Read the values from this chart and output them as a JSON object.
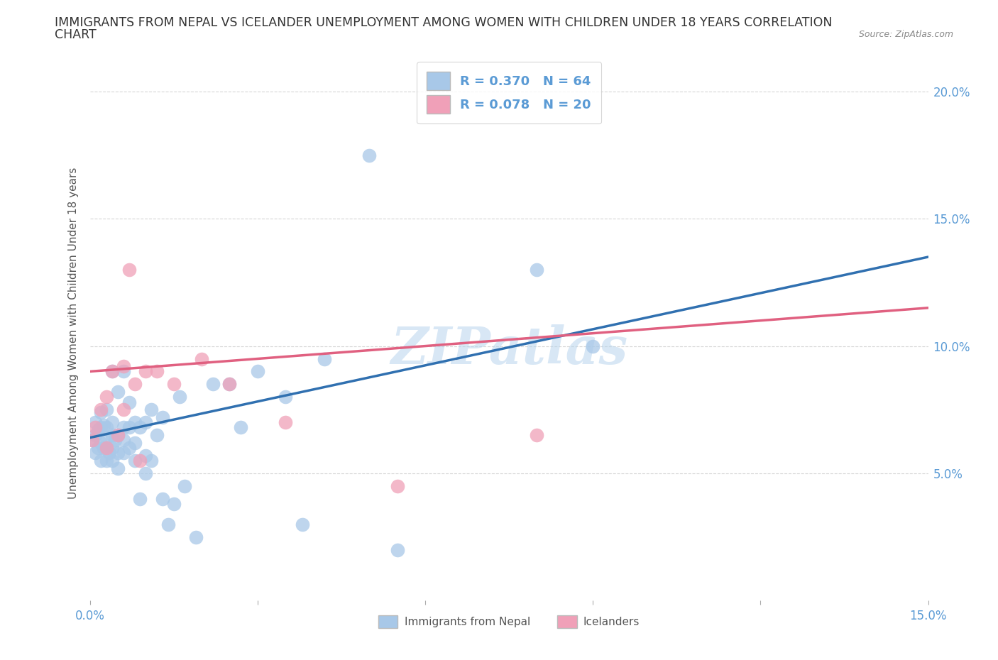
{
  "title_line1": "IMMIGRANTS FROM NEPAL VS ICELANDER UNEMPLOYMENT AMONG WOMEN WITH CHILDREN UNDER 18 YEARS CORRELATION",
  "title_line2": "CHART",
  "source": "Source: ZipAtlas.com",
  "ylabel": "Unemployment Among Women with Children Under 18 years",
  "xlim": [
    0.0,
    0.15
  ],
  "ylim": [
    0.0,
    0.21
  ],
  "xtick_positions": [
    0.0,
    0.03,
    0.06,
    0.09,
    0.12,
    0.15
  ],
  "xtick_labels": [
    "0.0%",
    "",
    "",
    "",
    "",
    "15.0%"
  ],
  "ytick_positions": [
    0.05,
    0.1,
    0.15,
    0.2
  ],
  "ytick_labels": [
    "5.0%",
    "10.0%",
    "15.0%",
    "20.0%"
  ],
  "nepal_R": 0.37,
  "nepal_N": 64,
  "iceland_R": 0.078,
  "iceland_N": 20,
  "nepal_color": "#A8C8E8",
  "iceland_color": "#F0A0B8",
  "nepal_line_color": "#3070B0",
  "iceland_line_color": "#E06080",
  "watermark": "ZIPatlas",
  "background_color": "#FFFFFF",
  "grid_color": "#CCCCCC",
  "nepal_x": [
    0.0005,
    0.001,
    0.001,
    0.001,
    0.0015,
    0.0015,
    0.002,
    0.002,
    0.002,
    0.002,
    0.0025,
    0.0025,
    0.003,
    0.003,
    0.003,
    0.003,
    0.003,
    0.0035,
    0.004,
    0.004,
    0.004,
    0.004,
    0.004,
    0.0045,
    0.005,
    0.005,
    0.005,
    0.005,
    0.006,
    0.006,
    0.006,
    0.006,
    0.007,
    0.007,
    0.007,
    0.008,
    0.008,
    0.008,
    0.009,
    0.009,
    0.01,
    0.01,
    0.01,
    0.011,
    0.011,
    0.012,
    0.013,
    0.013,
    0.014,
    0.015,
    0.016,
    0.017,
    0.019,
    0.022,
    0.025,
    0.027,
    0.03,
    0.035,
    0.038,
    0.042,
    0.05,
    0.055,
    0.08,
    0.09
  ],
  "nepal_y": [
    0.063,
    0.058,
    0.065,
    0.07,
    0.06,
    0.067,
    0.055,
    0.062,
    0.068,
    0.074,
    0.06,
    0.069,
    0.055,
    0.06,
    0.064,
    0.068,
    0.075,
    0.058,
    0.055,
    0.06,
    0.065,
    0.07,
    0.09,
    0.063,
    0.052,
    0.058,
    0.065,
    0.082,
    0.058,
    0.063,
    0.068,
    0.09,
    0.06,
    0.068,
    0.078,
    0.055,
    0.062,
    0.07,
    0.04,
    0.068,
    0.05,
    0.057,
    0.07,
    0.055,
    0.075,
    0.065,
    0.04,
    0.072,
    0.03,
    0.038,
    0.08,
    0.045,
    0.025,
    0.085,
    0.085,
    0.068,
    0.09,
    0.08,
    0.03,
    0.095,
    0.175,
    0.02,
    0.13,
    0.1
  ],
  "iceland_x": [
    0.0005,
    0.001,
    0.002,
    0.003,
    0.003,
    0.004,
    0.005,
    0.006,
    0.006,
    0.007,
    0.008,
    0.009,
    0.01,
    0.012,
    0.015,
    0.02,
    0.025,
    0.035,
    0.055,
    0.08
  ],
  "iceland_y": [
    0.063,
    0.068,
    0.075,
    0.08,
    0.06,
    0.09,
    0.065,
    0.075,
    0.092,
    0.13,
    0.085,
    0.055,
    0.09,
    0.09,
    0.085,
    0.095,
    0.085,
    0.07,
    0.045,
    0.065
  ],
  "nepal_line_x0": 0.0,
  "nepal_line_y0": 0.064,
  "nepal_line_x1": 0.15,
  "nepal_line_y1": 0.135,
  "iceland_line_x0": 0.0,
  "iceland_line_y0": 0.09,
  "iceland_line_x1": 0.15,
  "iceland_line_y1": 0.115
}
